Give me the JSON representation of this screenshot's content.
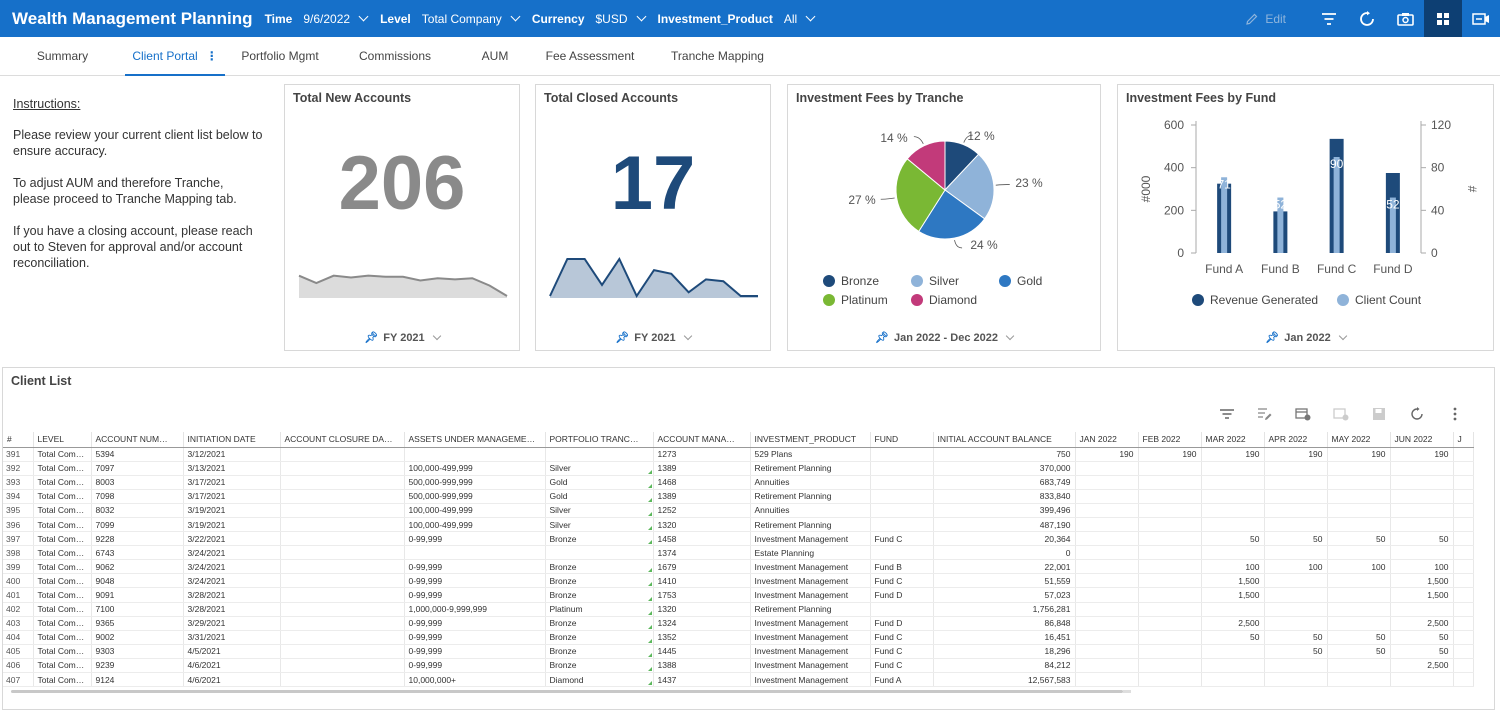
{
  "app": {
    "title": "Wealth Management Planning"
  },
  "filters": [
    {
      "label": "Time",
      "value": "9/6/2022"
    },
    {
      "label": "Level",
      "value": "Total Company"
    },
    {
      "label": "Currency",
      "value": "$USD"
    },
    {
      "label": "Investment_Product",
      "value": "All"
    }
  ],
  "toolbar": {
    "edit_label": "Edit",
    "icons": [
      "pencil-icon",
      "filter-icon",
      "refresh-icon",
      "camera-icon",
      "dashboard-icon",
      "present-icon"
    ]
  },
  "tabs": [
    {
      "label": "Summary"
    },
    {
      "label": "Client Portal",
      "active": true
    },
    {
      "label": "Portfolio Mgmt"
    },
    {
      "label": "Commissions"
    },
    {
      "label": "AUM"
    },
    {
      "label": "Fee Assessment"
    },
    {
      "label": "Tranche Mapping"
    }
  ],
  "instructions": {
    "title": "Instructions:",
    "p1": "Please review your current client list below to ensure accuracy.",
    "p2": "To adjust AUM and therefore Tranche, please proceed to Tranche Mapping tab.",
    "p3": "If you have a closing account, please reach out to Steven for approval and/or account reconciliation."
  },
  "kpi_new": {
    "title": "Total New Accounts",
    "value": "206",
    "footer": "FY 2021",
    "color": "#8a8a8a",
    "sparkline": [
      0.55,
      0.35,
      0.55,
      0.5,
      0.55,
      0.52,
      0.52,
      0.42,
      0.48,
      0.45,
      0.48,
      0.28,
      0.0
    ]
  },
  "kpi_closed": {
    "title": "Total Closed Accounts",
    "value": "17",
    "footer": "FY 2021",
    "color": "#1e4a7a",
    "sparkline": [
      0.0,
      1.0,
      1.0,
      0.3,
      1.0,
      0.0,
      0.7,
      0.6,
      0.1,
      0.45,
      0.4,
      0.0,
      0.0
    ]
  },
  "pie": {
    "title": "Investment Fees by Tranche",
    "footer": "Jan 2022 - Dec 2022",
    "slices": [
      {
        "name": "Bronze",
        "pct": 12,
        "label": "12 %",
        "color": "#1e4a7a"
      },
      {
        "name": "Silver",
        "pct": 23,
        "label": "23 %",
        "color": "#8fb3d9"
      },
      {
        "name": "Gold",
        "pct": 24,
        "label": "24 %",
        "color": "#2e78c2"
      },
      {
        "name": "Platinum",
        "pct": 27,
        "label": "27 %",
        "color": "#7ab834"
      },
      {
        "name": "Diamond",
        "pct": 14,
        "label": "14 %",
        "color": "#c23a7a"
      }
    ]
  },
  "fund_chart": {
    "title": "Investment Fees by Fund",
    "footer": "Jan 2022",
    "ylabel_left": "#000",
    "ylabel_right": "#",
    "left_ticks": [
      "600",
      "400",
      "200",
      "0"
    ],
    "right_ticks": [
      "120",
      "80",
      "40",
      "0"
    ],
    "chart_data": {
      "type": "bar",
      "categories": [
        "Fund A",
        "Fund B",
        "Fund C",
        "Fund D"
      ],
      "series": [
        {
          "name": "Revenue Generated",
          "axis": "left",
          "values": [
            325,
            195,
            535,
            375
          ],
          "color": "#1e4a7a"
        },
        {
          "name": "Client Count",
          "axis": "right",
          "values": [
            71,
            52,
            90,
            52
          ],
          "color": "#8fb3d9"
        }
      ],
      "ylim_left": [
        0,
        600
      ],
      "ylim_right": [
        0,
        120
      ]
    }
  },
  "client_list": {
    "title": "Client List",
    "tools": [
      "filter-icon",
      "edit-rows-icon",
      "add-column-icon",
      "delete-icon",
      "save-icon",
      "refresh-icon",
      "more-icon"
    ],
    "columns": [
      "#",
      "LEVEL",
      "ACCOUNT NUM…",
      "INITIATION DATE",
      "ACCOUNT CLOSURE DA…",
      "ASSETS UNDER MANAGEME…",
      "PORTFOLIO TRANC…",
      "ACCOUNT MANA…",
      "INVESTMENT_PRODUCT",
      "FUND",
      "INITIAL ACCOUNT BALANCE",
      "JAN 2022",
      "FEB 2022",
      "MAR 2022",
      "APR 2022",
      "MAY 2022",
      "JUN 2022",
      "J"
    ],
    "rows": [
      [
        "391",
        "Total Com…",
        "5394",
        "3/12/2021",
        "",
        "",
        "",
        "1273",
        "529 Plans",
        "",
        "750",
        "190",
        "190",
        "190",
        "190",
        "190",
        "190",
        ""
      ],
      [
        "392",
        "Total Com…",
        "7097",
        "3/13/2021",
        "",
        "100,000-499,999",
        "Silver",
        "1389",
        "Retirement Planning",
        "",
        "370,000",
        "",
        "",
        "",
        "",
        "",
        "",
        ""
      ],
      [
        "393",
        "Total Com…",
        "8003",
        "3/17/2021",
        "",
        "500,000-999,999",
        "Gold",
        "1468",
        "Annuities",
        "",
        "683,749",
        "",
        "",
        "",
        "",
        "",
        "",
        ""
      ],
      [
        "394",
        "Total Com…",
        "7098",
        "3/17/2021",
        "",
        "500,000-999,999",
        "Gold",
        "1389",
        "Retirement Planning",
        "",
        "833,840",
        "",
        "",
        "",
        "",
        "",
        "",
        ""
      ],
      [
        "395",
        "Total Com…",
        "8032",
        "3/19/2021",
        "",
        "100,000-499,999",
        "Silver",
        "1252",
        "Annuities",
        "",
        "399,496",
        "",
        "",
        "",
        "",
        "",
        "",
        ""
      ],
      [
        "396",
        "Total Com…",
        "7099",
        "3/19/2021",
        "",
        "100,000-499,999",
        "Silver",
        "1320",
        "Retirement Planning",
        "",
        "487,190",
        "",
        "",
        "",
        "",
        "",
        "",
        ""
      ],
      [
        "397",
        "Total Com…",
        "9228",
        "3/22/2021",
        "",
        "0-99,999",
        "Bronze",
        "1458",
        "Investment Management",
        "Fund C",
        "20,364",
        "",
        "",
        "50",
        "50",
        "50",
        "50",
        ""
      ],
      [
        "398",
        "Total Com…",
        "6743",
        "3/24/2021",
        "",
        "",
        "",
        "1374",
        "Estate Planning",
        "",
        "0",
        "",
        "",
        "",
        "",
        "",
        "",
        ""
      ],
      [
        "399",
        "Total Com…",
        "9062",
        "3/24/2021",
        "",
        "0-99,999",
        "Bronze",
        "1679",
        "Investment Management",
        "Fund B",
        "22,001",
        "",
        "",
        "100",
        "100",
        "100",
        "100",
        ""
      ],
      [
        "400",
        "Total Com…",
        "9048",
        "3/24/2021",
        "",
        "0-99,999",
        "Bronze",
        "1410",
        "Investment Management",
        "Fund C",
        "51,559",
        "",
        "",
        "1,500",
        "",
        "",
        "1,500",
        ""
      ],
      [
        "401",
        "Total Com…",
        "9091",
        "3/28/2021",
        "",
        "0-99,999",
        "Bronze",
        "1753",
        "Investment Management",
        "Fund D",
        "57,023",
        "",
        "",
        "1,500",
        "",
        "",
        "1,500",
        ""
      ],
      [
        "402",
        "Total Com…",
        "7100",
        "3/28/2021",
        "",
        "1,000,000-9,999,999",
        "Platinum",
        "1320",
        "Retirement Planning",
        "",
        "1,756,281",
        "",
        "",
        "",
        "",
        "",
        "",
        ""
      ],
      [
        "403",
        "Total Com…",
        "9365",
        "3/29/2021",
        "",
        "0-99,999",
        "Bronze",
        "1324",
        "Investment Management",
        "Fund D",
        "86,848",
        "",
        "",
        "2,500",
        "",
        "",
        "2,500",
        ""
      ],
      [
        "404",
        "Total Com…",
        "9002",
        "3/31/2021",
        "",
        "0-99,999",
        "Bronze",
        "1352",
        "Investment Management",
        "Fund C",
        "16,451",
        "",
        "",
        "50",
        "50",
        "50",
        "50",
        ""
      ],
      [
        "405",
        "Total Com…",
        "9303",
        "4/5/2021",
        "",
        "0-99,999",
        "Bronze",
        "1445",
        "Investment Management",
        "Fund C",
        "18,296",
        "",
        "",
        "",
        "50",
        "50",
        "50",
        ""
      ],
      [
        "406",
        "Total Com…",
        "9239",
        "4/6/2021",
        "",
        "0-99,999",
        "Bronze",
        "1388",
        "Investment Management",
        "Fund C",
        "84,212",
        "",
        "",
        "",
        "",
        "",
        "2,500",
        ""
      ],
      [
        "407",
        "Total Com…",
        "9124",
        "4/6/2021",
        "",
        "10,000,000+",
        "Diamond",
        "1437",
        "Investment Management",
        "Fund A",
        "12,567,583",
        "",
        "",
        "",
        "",
        "",
        "",
        ""
      ]
    ]
  }
}
